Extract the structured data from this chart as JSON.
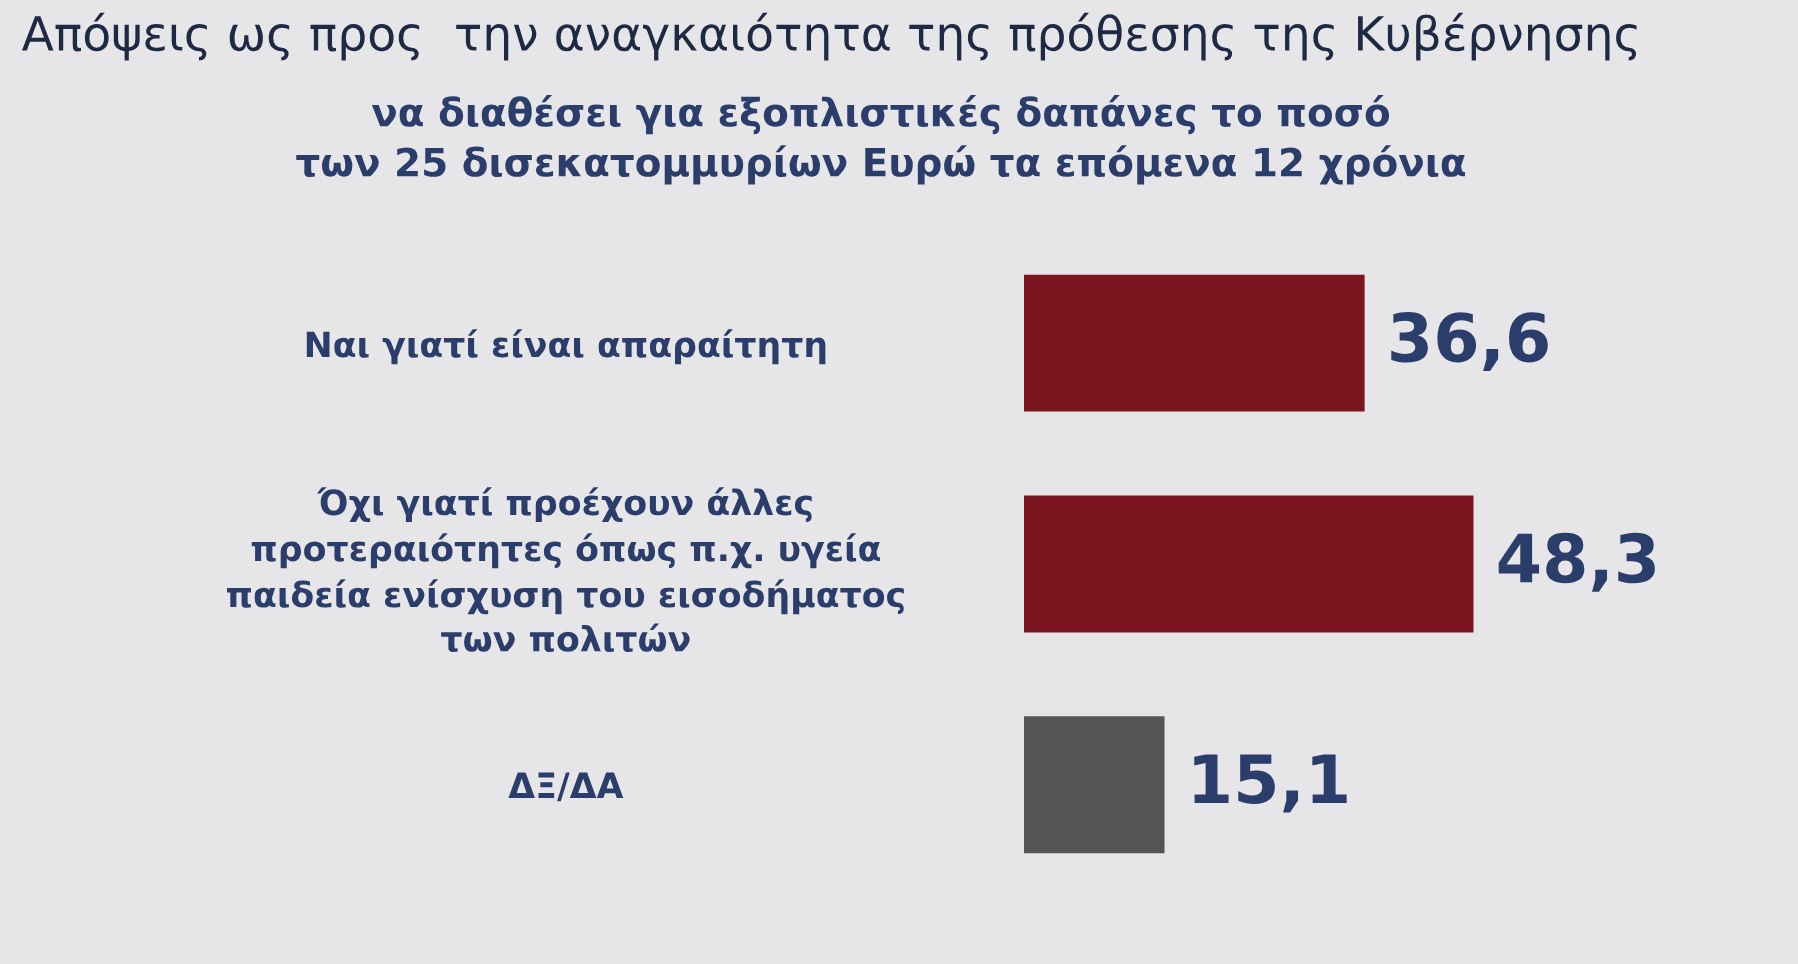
{
  "chart_data": {
    "type": "bar",
    "orientation": "horizontal",
    "title": "Απόψεις ως προς  την αναγκαιότητα της πρόθεσης της Κυβέρνησης",
    "subtitle": "να διαθέσει για εξοπλιστικές δαπάνες το ποσό\nτων 25 δισεκατομμυρίων Ευρώ τα επόμενα 12 χρόνια",
    "categories": [
      "Ναι γιατί είναι απαραίτητη",
      "Όχι γιατί προέχουν άλλες\nπροτεραιότητες όπως π.χ. υγεία\nπαιδεία ενίσχυση του εισοδήματος\nτων πολιτών",
      "ΔΞ/ΔΑ"
    ],
    "values": [
      36.6,
      48.3,
      15.1
    ],
    "value_labels": [
      "36,6",
      "48,3",
      "15,1"
    ],
    "colors": [
      "#7b1621",
      "#7b1621",
      "#555555"
    ],
    "grid": false,
    "legend": false
  }
}
